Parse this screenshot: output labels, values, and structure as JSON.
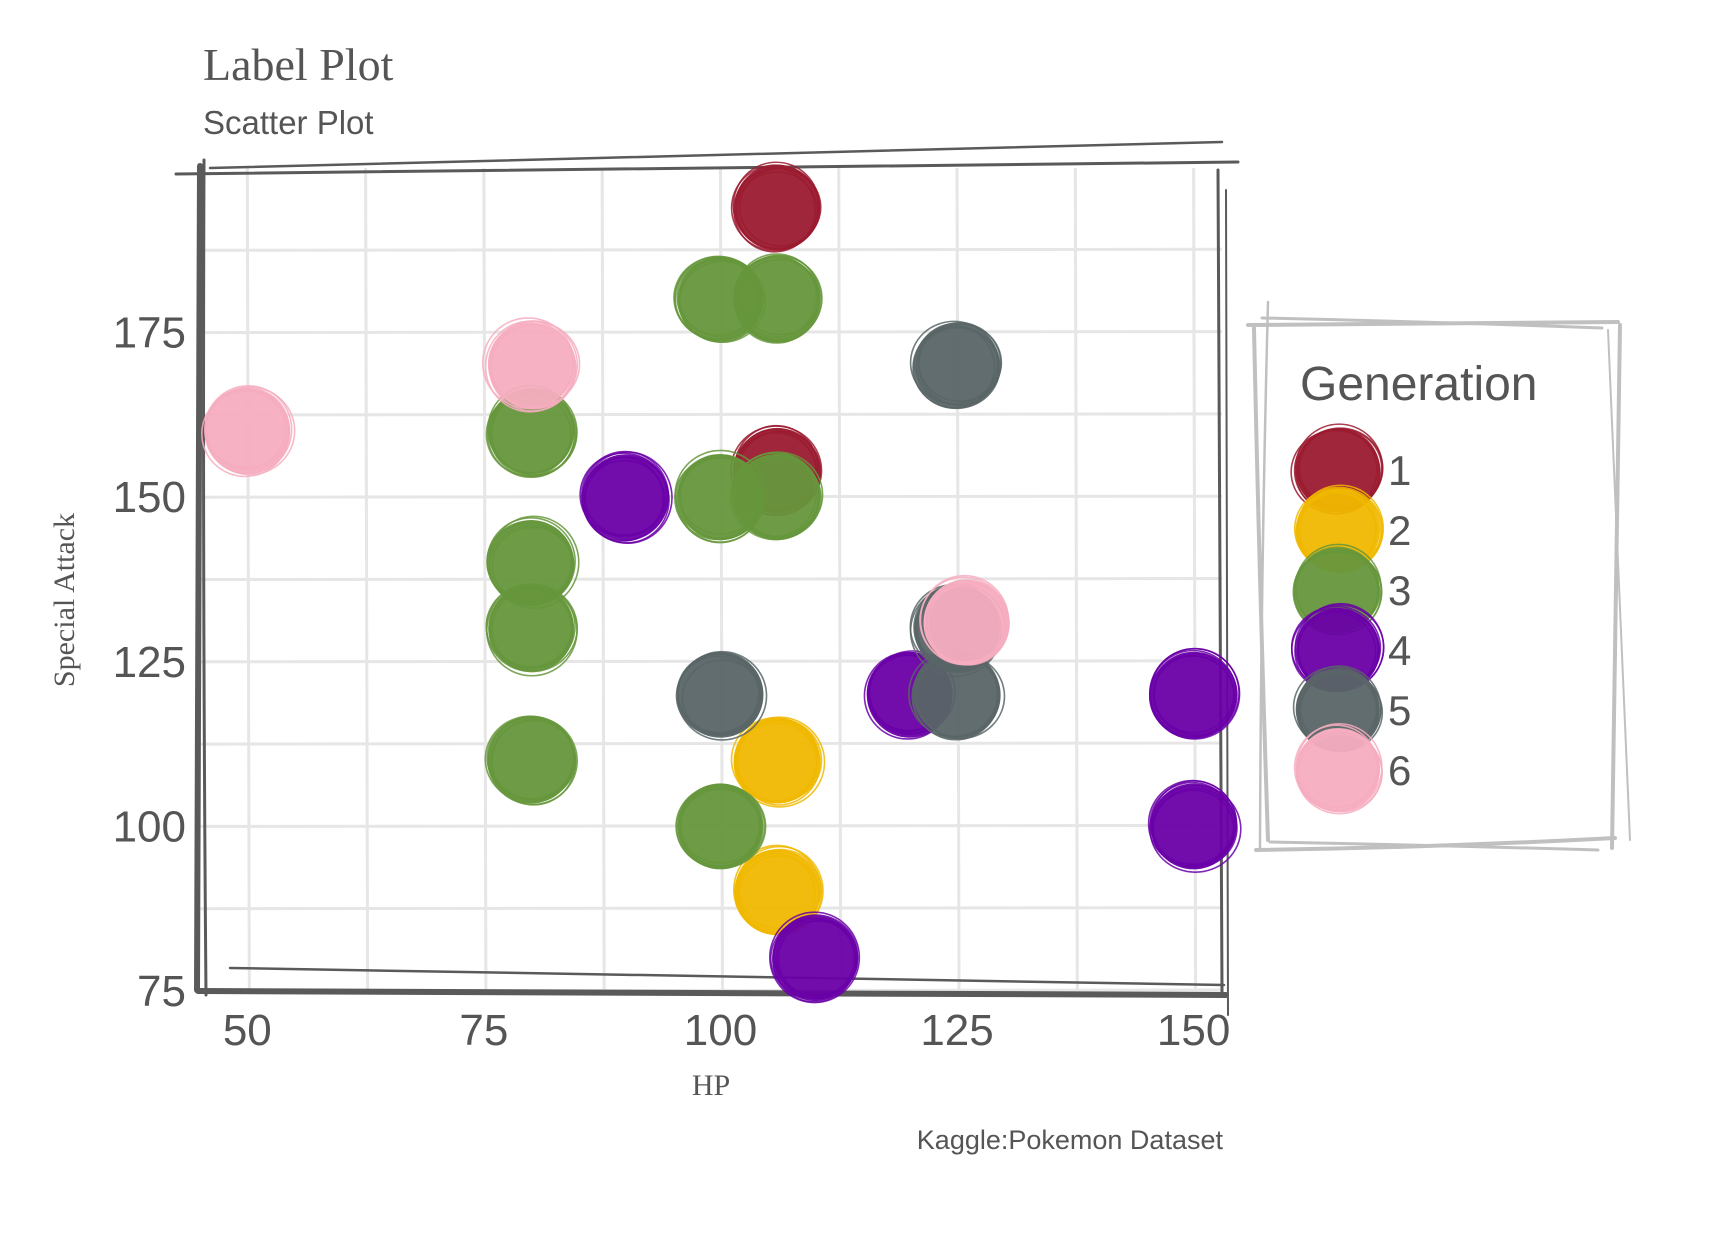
{
  "colors": {
    "gen1": "#9b1b30",
    "gen2": "#f0b800",
    "gen3": "#66963c",
    "gen4": "#6a00a8",
    "gen5": "#596566",
    "gen6": "#f6adc0",
    "frame": "#5a5a5a",
    "legend_frame": "#c0c0c0",
    "grid": "#e6e6e6",
    "text": "#555555"
  },
  "chart_data": {
    "type": "scatter",
    "title": "Label Plot",
    "subtitle": "Scatter Plot",
    "xlabel": "HP",
    "ylabel": "Special Attack",
    "caption": "Kaggle:Pokemon Dataset",
    "xlim": [
      45,
      153
    ],
    "ylim": [
      75,
      200
    ],
    "x_ticks": [
      "50",
      "75",
      "100",
      "125",
      "150"
    ],
    "y_ticks": [
      "75",
      "100",
      "125",
      "150",
      "175"
    ],
    "grid": true,
    "legend": {
      "title": "Generation",
      "placement": "right",
      "entries": [
        "1",
        "2",
        "3",
        "4",
        "5",
        "6"
      ]
    },
    "series": [
      {
        "name": "1",
        "color": "#9b1b30",
        "points": [
          [
            106,
            194
          ],
          [
            106,
            154
          ]
        ]
      },
      {
        "name": "2",
        "color": "#f0b800",
        "points": [
          [
            106,
            110
          ],
          [
            106,
            90
          ]
        ]
      },
      {
        "name": "3",
        "color": "#66963c",
        "points": [
          [
            100,
            180
          ],
          [
            106,
            180
          ],
          [
            80,
            160
          ],
          [
            100,
            150
          ],
          [
            106,
            150
          ],
          [
            80,
            140
          ],
          [
            80,
            130
          ],
          [
            80,
            110
          ],
          [
            100,
            100
          ]
        ]
      },
      {
        "name": "4",
        "color": "#6a00a8",
        "points": [
          [
            90,
            150
          ],
          [
            120,
            120
          ],
          [
            150,
            120
          ],
          [
            150,
            100
          ],
          [
            110,
            80
          ]
        ]
      },
      {
        "name": "5",
        "color": "#596566",
        "points": [
          [
            125,
            170
          ],
          [
            125,
            130
          ],
          [
            125,
            120
          ],
          [
            100,
            120
          ]
        ]
      },
      {
        "name": "6",
        "color": "#f6adc0",
        "points": [
          [
            50,
            160
          ],
          [
            80,
            170
          ],
          [
            126,
            131
          ]
        ]
      }
    ]
  }
}
